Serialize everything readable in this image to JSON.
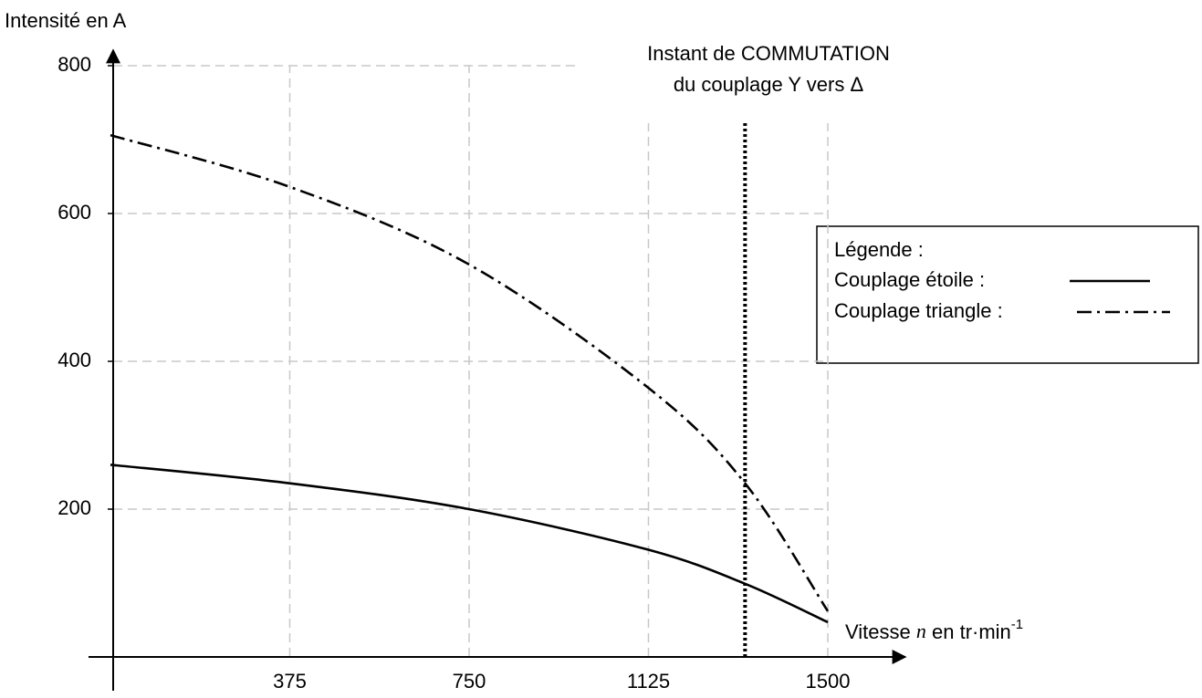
{
  "chart_data": {
    "type": "line",
    "y_label": "Intensité en A",
    "x_label": {
      "prefix": "Vitesse",
      "variable": "n",
      "unit": "en tr·min",
      "exponent": "-1"
    },
    "x": [
      0,
      375,
      750,
      1125,
      1327,
      1500
    ],
    "series": [
      {
        "name": "Couplage étoile :",
        "color": "#000000",
        "dash": "solid",
        "values": [
          260,
          235,
          200,
          145,
          99,
          47
        ]
      },
      {
        "name": "Couplage triangle :",
        "color": "#000000",
        "dash": "dashdot",
        "values": [
          706,
          636,
          531,
          364,
          235,
          62
        ]
      }
    ],
    "legend_title": "Légende :",
    "legend": "right",
    "annotation": {
      "lines": [
        "Instant de COMMUTATION",
        "du couplage Y vers Δ"
      ],
      "x": 1327
    },
    "xlim": [
      0,
      1500
    ],
    "ylim": [
      0,
      800
    ],
    "xticks": [
      375,
      750,
      1125,
      1500
    ],
    "yticks": [
      200,
      400,
      600,
      800
    ],
    "grid": true
  }
}
